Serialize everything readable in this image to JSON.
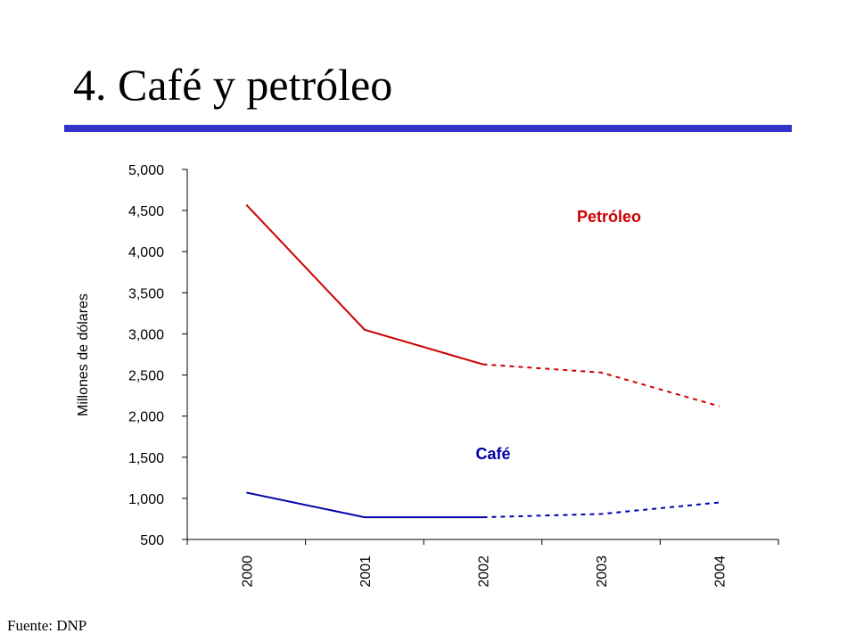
{
  "slide": {
    "title": "4. Café y petróleo",
    "source": "Fuente: DNP",
    "rule_color": "#3333CC"
  },
  "chart_data": {
    "type": "line",
    "title": "",
    "xlabel": "",
    "ylabel": "Millones de dólares",
    "categories": [
      "2000",
      "2001",
      "2002",
      "2003",
      "2004"
    ],
    "ylim": [
      500,
      5000
    ],
    "yticks": [
      500,
      1000,
      1500,
      2000,
      2500,
      3000,
      3500,
      4000,
      4500,
      5000
    ],
    "ytick_labels": [
      "500",
      "1,000",
      "1,500",
      "2,000",
      "2,500",
      "3,000",
      "3,500",
      "4,000",
      "4,500",
      "5,000"
    ],
    "grid": false,
    "series": [
      {
        "name": "Petróleo",
        "color": "#CC0000",
        "values": [
          4570,
          3050,
          2630,
          2530,
          2120
        ],
        "solid_through_index": 2
      },
      {
        "name": "Café",
        "color": "#0000AA",
        "values": [
          1070,
          770,
          770,
          810,
          950
        ],
        "solid_through_index": 2
      }
    ]
  }
}
